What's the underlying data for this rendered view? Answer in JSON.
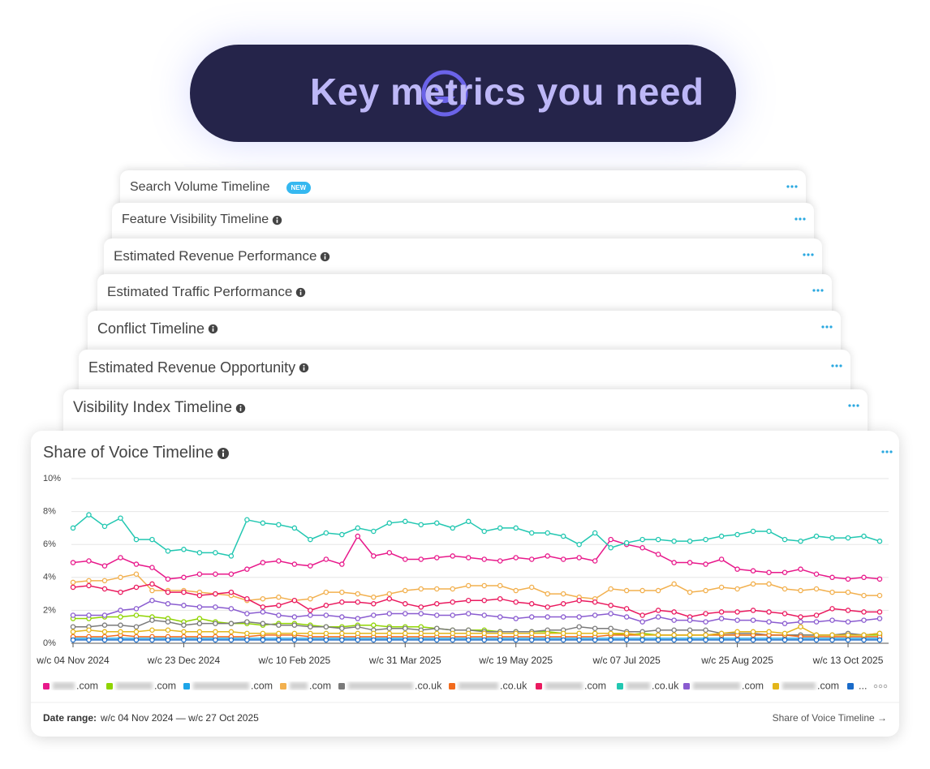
{
  "header": {
    "title": "Key metrics you need"
  },
  "cards": [
    {
      "title": "Search Volume Timeline",
      "badge": "NEW"
    },
    {
      "title": "Feature Visibility Timeline"
    },
    {
      "title": "Estimated Revenue Performance"
    },
    {
      "title": "Estimated Traffic Performance"
    },
    {
      "title": "Conflict Timeline"
    },
    {
      "title": "Estimated Revenue Opportunity"
    },
    {
      "title": "Visibility Index Timeline"
    }
  ],
  "chart_data": {
    "type": "line",
    "title": "Share of Voice Timeline",
    "categories": [
      "w/c 04 Nov 2024",
      null,
      null,
      null,
      null,
      null,
      null,
      "w/c 23 Dec 2024",
      null,
      null,
      null,
      null,
      null,
      null,
      "w/c 10 Feb 2025",
      null,
      null,
      null,
      null,
      null,
      null,
      "w/c 31 Mar 2025",
      null,
      null,
      null,
      null,
      null,
      null,
      "w/c 19 May 2025",
      null,
      null,
      null,
      null,
      null,
      null,
      "w/c 07 Jul 2025",
      null,
      null,
      null,
      null,
      null,
      null,
      "w/c 25 Aug 2025",
      null,
      null,
      null,
      null,
      null,
      null,
      "w/c 13 Oct 2025",
      null,
      null
    ],
    "ylim": [
      0,
      10
    ],
    "yticks": [
      {
        "value": 0,
        "label": "0%"
      },
      {
        "value": 2,
        "label": "2%"
      },
      {
        "value": 4,
        "label": "4%"
      },
      {
        "value": 6,
        "label": "6%"
      },
      {
        "value": 8,
        "label": "8%"
      },
      {
        "value": 10,
        "label": "10%"
      }
    ],
    "grid": true,
    "markers": true,
    "series": [
      {
        "name": ".com",
        "color": "#e8198b",
        "values": [
          4.9,
          5.0,
          4.7,
          5.2,
          4.8,
          4.6,
          3.9,
          4.0,
          4.2,
          4.2,
          4.2,
          4.5,
          4.9,
          5.0,
          4.8,
          4.7,
          5.1,
          4.8,
          6.5,
          5.3,
          5.5,
          5.1,
          5.1,
          5.2,
          5.3,
          5.2,
          5.1,
          5.0,
          5.2,
          5.1,
          5.3,
          5.1,
          5.2,
          5.0,
          6.3,
          6.0,
          5.8,
          5.4,
          4.9,
          4.9,
          4.8,
          5.1,
          4.5,
          4.4,
          4.3,
          4.3,
          4.5,
          4.2,
          4.0,
          3.9,
          4.0,
          3.9
        ]
      },
      {
        "name": ".com",
        "color": "#8fd400",
        "values": [
          1.5,
          1.5,
          1.6,
          1.6,
          1.7,
          1.6,
          1.5,
          1.3,
          1.5,
          1.3,
          1.2,
          1.2,
          1.1,
          1.2,
          1.2,
          1.1,
          1.0,
          1.0,
          1.1,
          1.1,
          1.0,
          1.0,
          1.0,
          0.9,
          0.8,
          0.8,
          0.8,
          0.7,
          0.7,
          0.7,
          0.7,
          0.6,
          0.6,
          0.6,
          0.6,
          0.5,
          0.6,
          0.5,
          0.5,
          0.5,
          0.5,
          0.5,
          0.5,
          0.5,
          0.5,
          0.5,
          0.5,
          0.5,
          0.5,
          0.5,
          0.5,
          0.5
        ]
      },
      {
        "name": ".com",
        "color": "#1ea5e8",
        "values": [
          0.3,
          0.3,
          0.3,
          0.3,
          0.3,
          0.3,
          0.3,
          0.3,
          0.3,
          0.3,
          0.3,
          0.3,
          0.3,
          0.3,
          0.3,
          0.3,
          0.3,
          0.3,
          0.3,
          0.3,
          0.3,
          0.3,
          0.3,
          0.3,
          0.3,
          0.3,
          0.3,
          0.3,
          0.3,
          0.3,
          0.3,
          0.3,
          0.3,
          0.3,
          0.3,
          0.3,
          0.3,
          0.3,
          0.3,
          0.3,
          0.3,
          0.3,
          0.3,
          0.3,
          0.3,
          0.3,
          0.3,
          0.3,
          0.3,
          0.3,
          0.3,
          0.3
        ]
      },
      {
        "name": ".com",
        "color": "#f2b04e",
        "values": [
          3.7,
          3.8,
          3.8,
          4.0,
          4.2,
          3.2,
          3.2,
          3.2,
          3.1,
          3.0,
          2.9,
          2.6,
          2.7,
          2.8,
          2.6,
          2.7,
          3.1,
          3.1,
          3.0,
          2.8,
          3.0,
          3.2,
          3.3,
          3.3,
          3.3,
          3.5,
          3.5,
          3.5,
          3.2,
          3.4,
          3.0,
          3.0,
          2.8,
          2.7,
          3.3,
          3.2,
          3.2,
          3.2,
          3.6,
          3.1,
          3.2,
          3.4,
          3.3,
          3.6,
          3.6,
          3.3,
          3.2,
          3.3,
          3.1,
          3.1,
          2.9,
          2.9
        ]
      },
      {
        "name": ".co.uk",
        "color": "#7a7a7a",
        "values": [
          1.0,
          1.0,
          1.1,
          1.1,
          1.0,
          1.4,
          1.3,
          1.1,
          1.2,
          1.2,
          1.2,
          1.3,
          1.2,
          1.1,
          1.1,
          1.0,
          1.0,
          0.9,
          1.0,
          0.8,
          0.9,
          0.9,
          0.8,
          0.9,
          0.8,
          0.8,
          0.7,
          0.7,
          0.7,
          0.7,
          0.8,
          0.8,
          1.0,
          0.9,
          0.9,
          0.7,
          0.7,
          0.8,
          0.8,
          0.8,
          0.8,
          0.6,
          0.6,
          0.6,
          0.5,
          0.5,
          0.5,
          0.5,
          0.5,
          0.6,
          0.5,
          0.6
        ]
      },
      {
        "name": ".co.uk",
        "color": "#f26b1d",
        "values": [
          0.4,
          0.4,
          0.4,
          0.5,
          0.4,
          0.4,
          0.4,
          0.4,
          0.4,
          0.4,
          0.4,
          0.4,
          0.5,
          0.5,
          0.5,
          0.4,
          0.4,
          0.4,
          0.4,
          0.4,
          0.4,
          0.4,
          0.4,
          0.4,
          0.4,
          0.4,
          0.4,
          0.4,
          0.4,
          0.4,
          0.4,
          0.4,
          0.4,
          0.4,
          0.5,
          0.5,
          0.5,
          0.5,
          0.5,
          0.5,
          0.5,
          0.5,
          0.5,
          0.5,
          0.5,
          0.5,
          0.4,
          0.4,
          0.4,
          0.4,
          0.4,
          0.4
        ]
      },
      {
        "name": ".com",
        "color": "#ea1a5f",
        "values": [
          3.4,
          3.5,
          3.3,
          3.1,
          3.4,
          3.6,
          3.1,
          3.1,
          2.9,
          3.0,
          3.1,
          2.7,
          2.2,
          2.3,
          2.6,
          2.0,
          2.3,
          2.5,
          2.5,
          2.4,
          2.7,
          2.4,
          2.2,
          2.4,
          2.5,
          2.6,
          2.6,
          2.7,
          2.5,
          2.4,
          2.2,
          2.4,
          2.6,
          2.5,
          2.3,
          2.1,
          1.7,
          2.0,
          1.9,
          1.6,
          1.8,
          1.9,
          1.9,
          2.0,
          1.9,
          1.8,
          1.6,
          1.7,
          2.1,
          2.0,
          1.9,
          1.9
        ]
      },
      {
        "name": ".co.uk",
        "color": "#22c7b1",
        "values": [
          7.0,
          7.8,
          7.1,
          7.6,
          6.3,
          6.3,
          5.6,
          5.7,
          5.5,
          5.5,
          5.3,
          7.5,
          7.3,
          7.2,
          7.0,
          6.3,
          6.7,
          6.6,
          7.0,
          6.8,
          7.3,
          7.4,
          7.2,
          7.3,
          7.0,
          7.4,
          6.8,
          7.0,
          7.0,
          6.7,
          6.7,
          6.5,
          6.0,
          6.7,
          5.8,
          6.1,
          6.3,
          6.3,
          6.2,
          6.2,
          6.3,
          6.5,
          6.6,
          6.8,
          6.8,
          6.3,
          6.2,
          6.5,
          6.4,
          6.4,
          6.5,
          6.2
        ]
      },
      {
        "name": ".com",
        "color": "#8a5cd0",
        "values": [
          1.7,
          1.7,
          1.7,
          2.0,
          2.1,
          2.6,
          2.4,
          2.3,
          2.2,
          2.2,
          2.1,
          1.8,
          1.9,
          1.7,
          1.6,
          1.7,
          1.7,
          1.6,
          1.5,
          1.7,
          1.8,
          1.8,
          1.8,
          1.7,
          1.7,
          1.8,
          1.7,
          1.6,
          1.5,
          1.6,
          1.6,
          1.6,
          1.6,
          1.7,
          1.8,
          1.6,
          1.3,
          1.6,
          1.4,
          1.4,
          1.3,
          1.5,
          1.4,
          1.4,
          1.3,
          1.2,
          1.3,
          1.3,
          1.4,
          1.3,
          1.4,
          1.5
        ]
      },
      {
        "name": ".com",
        "color": "#e3b51a",
        "values": [
          0.7,
          0.8,
          0.7,
          0.7,
          0.7,
          0.8,
          0.8,
          0.7,
          0.7,
          0.7,
          0.7,
          0.6,
          0.6,
          0.6,
          0.6,
          0.6,
          0.6,
          0.6,
          0.6,
          0.6,
          0.6,
          0.6,
          0.6,
          0.6,
          0.6,
          0.6,
          0.6,
          0.6,
          0.6,
          0.6,
          0.6,
          0.6,
          0.6,
          0.6,
          0.6,
          0.6,
          0.5,
          0.5,
          0.5,
          0.5,
          0.5,
          0.6,
          0.7,
          0.7,
          0.7,
          0.6,
          1.0,
          0.5,
          0.5,
          0.5,
          0.5,
          0.6
        ]
      },
      {
        "name": "...",
        "color": "#1a6bc9",
        "values": [
          0.2,
          0.2,
          0.2,
          0.2,
          0.2,
          0.2,
          0.2,
          0.2,
          0.2,
          0.2,
          0.2,
          0.2,
          0.2,
          0.2,
          0.2,
          0.2,
          0.2,
          0.2,
          0.2,
          0.2,
          0.2,
          0.2,
          0.2,
          0.2,
          0.2,
          0.2,
          0.2,
          0.2,
          0.2,
          0.2,
          0.2,
          0.2,
          0.2,
          0.2,
          0.2,
          0.2,
          0.2,
          0.2,
          0.2,
          0.2,
          0.2,
          0.2,
          0.2,
          0.2,
          0.2,
          0.2,
          0.2,
          0.2,
          0.2,
          0.2,
          0.2,
          0.2
        ]
      }
    ]
  },
  "footer": {
    "date_range_label": "Date range:",
    "date_range": "w/c 04 Nov 2024 — w/c 27 Oct 2025",
    "link": "Share of Voice Timeline →"
  }
}
